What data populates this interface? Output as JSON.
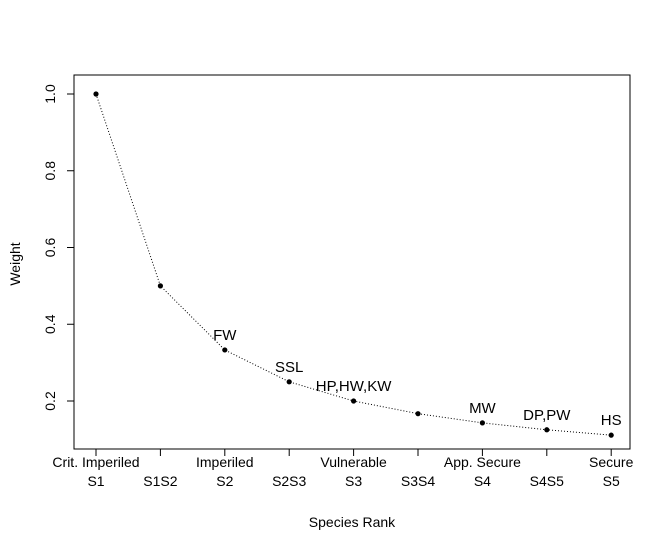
{
  "chart_data": {
    "type": "line",
    "title": "",
    "xlabel": "Species Rank",
    "ylabel": "Weight",
    "ylim": [
      0.08,
      1.03
    ],
    "yticks": [
      "0.2",
      "0.4",
      "0.6",
      "0.8",
      "1.0"
    ],
    "grid": false,
    "line_style": "dotted",
    "marker": "filled-circle",
    "categories": [
      "S1",
      "S1S2",
      "S2",
      "S2S3",
      "S3",
      "S3S4",
      "S4",
      "S4S5",
      "S5"
    ],
    "category_descriptions": [
      "Crit. Imperiled",
      "",
      "Imperiled",
      "",
      "Vulnerable",
      "",
      "App. Secure",
      "",
      "Secure"
    ],
    "values": [
      1.0,
      0.5,
      0.333,
      0.25,
      0.2,
      0.167,
      0.143,
      0.125,
      0.111
    ],
    "point_labels": [
      "",
      "",
      "FW",
      "SSL",
      "HP,HW,KW",
      "",
      "MW",
      "DP,PW",
      "HS"
    ]
  }
}
